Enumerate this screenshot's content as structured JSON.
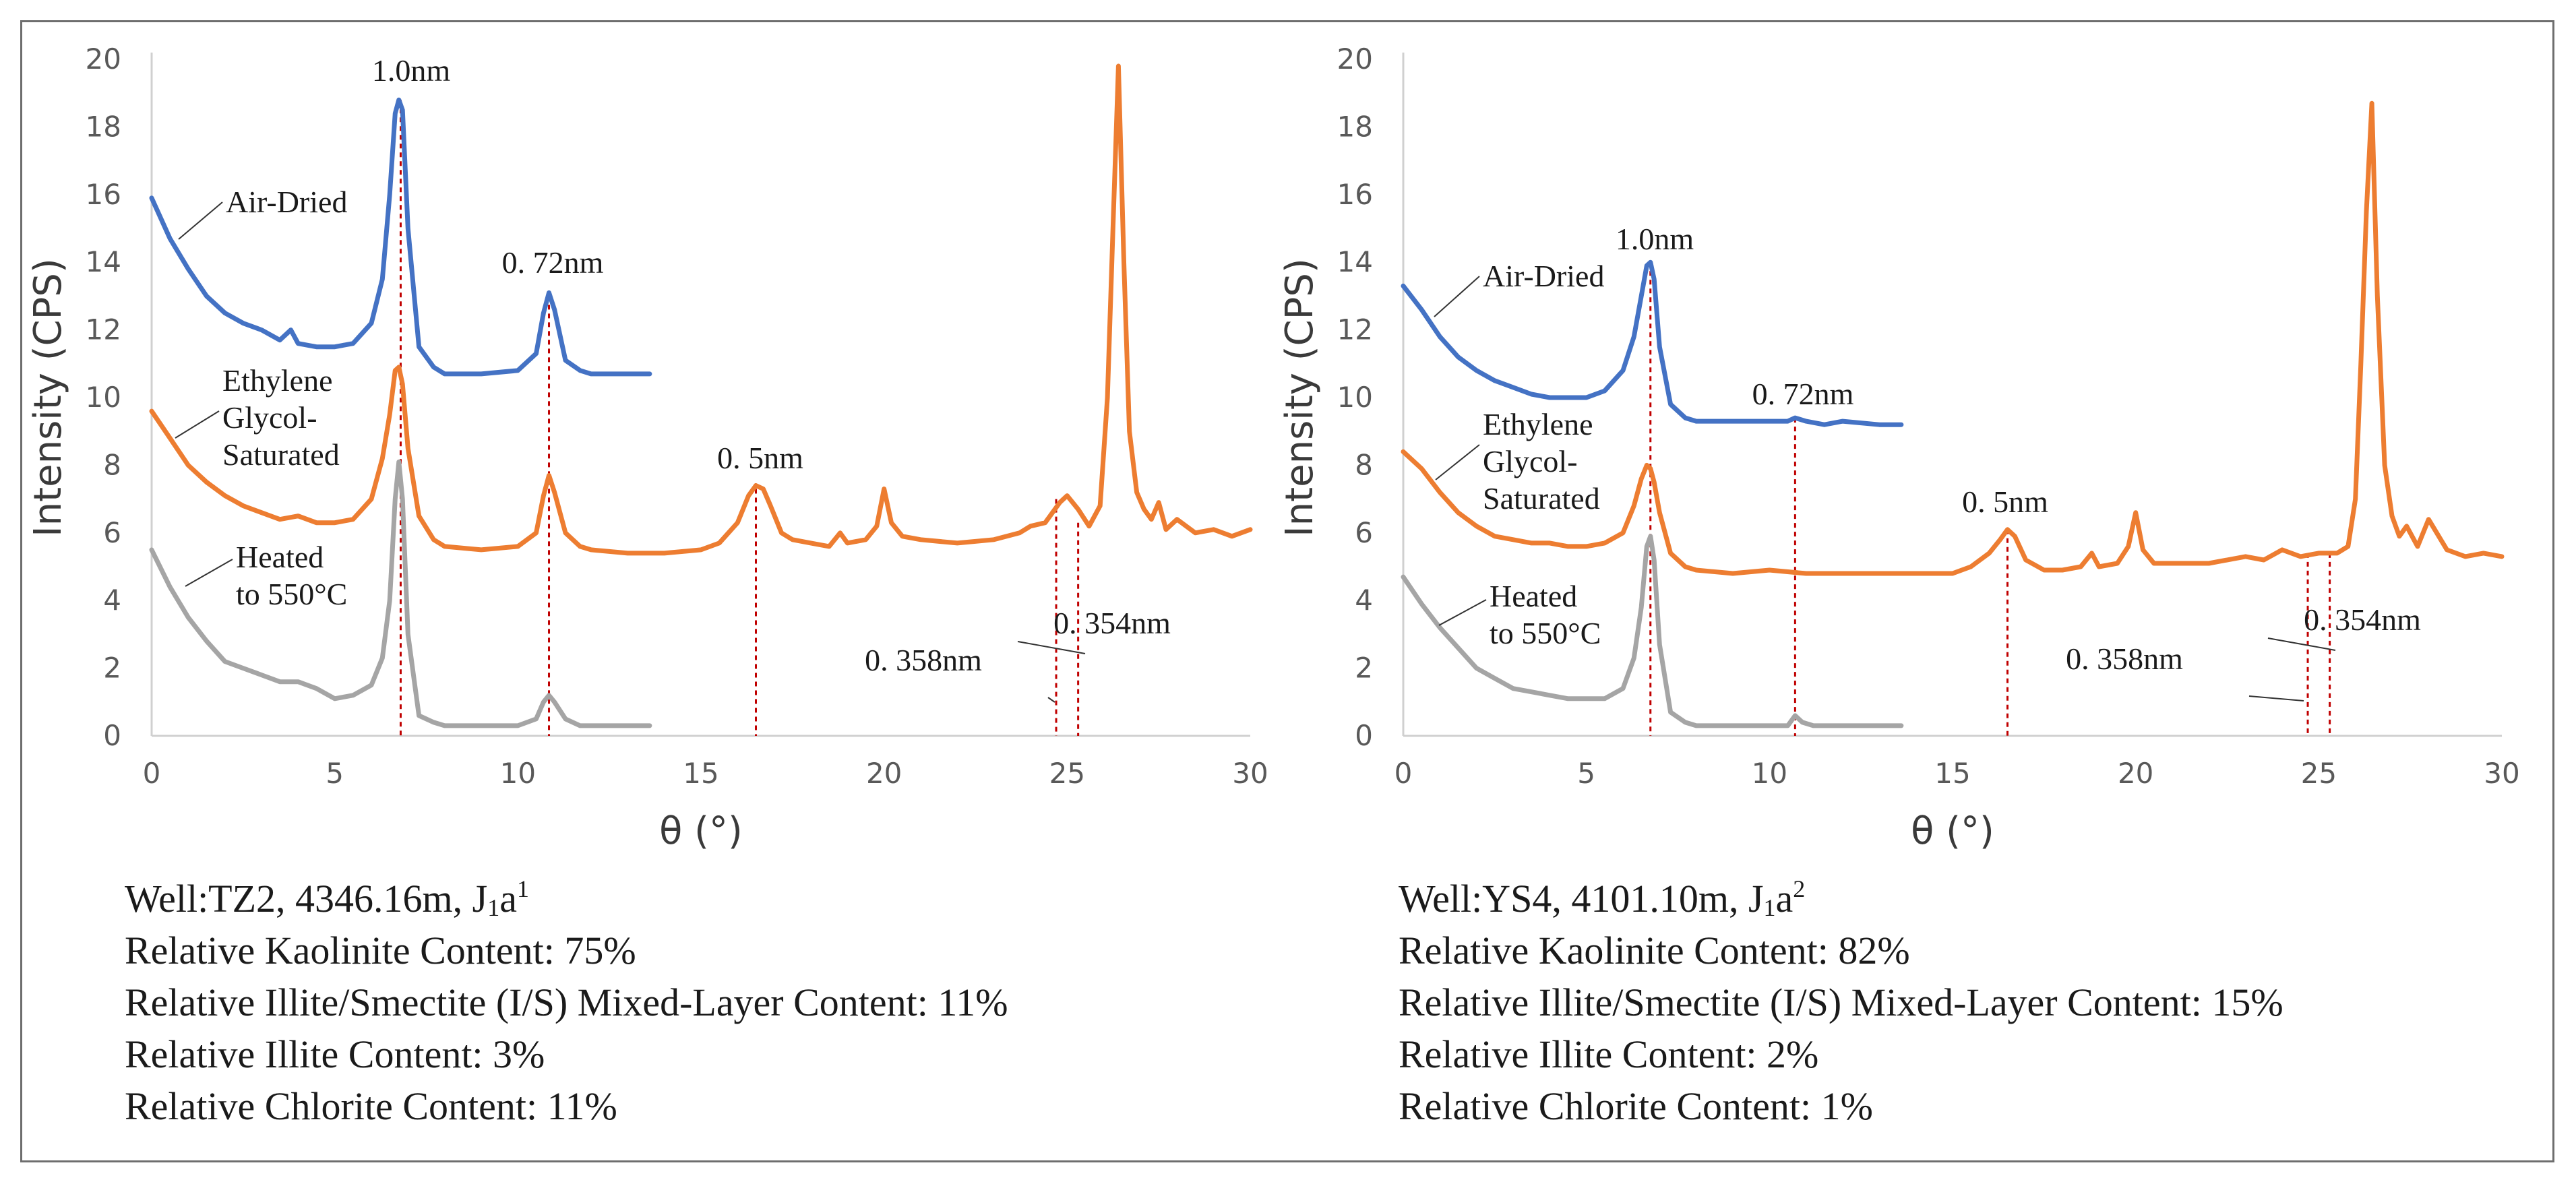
{
  "chart_data": [
    {
      "type": "line",
      "xlabel": "θ (°)",
      "ylabel": "Intensity (CPS)",
      "xlim": [
        0,
        30
      ],
      "ylim": [
        0,
        20
      ],
      "xticks": [
        "0",
        "5",
        "10",
        "15",
        "20",
        "25",
        "30"
      ],
      "yticks": [
        "0",
        "2",
        "4",
        "6",
        "8",
        "10",
        "12",
        "14",
        "16",
        "18",
        "20"
      ],
      "grid": false,
      "colors": {
        "air_dried": "#4472c4",
        "glycol": "#ed7d31",
        "heated": "#a5a5a5",
        "marker": "#c00000"
      },
      "series": [
        {
          "key": "air_dried",
          "label": "Air-Dried",
          "x": [
            0,
            0.5,
            1,
            1.5,
            2,
            2.5,
            3,
            3.5,
            3.8,
            4,
            4.5,
            5,
            5.5,
            6,
            6.3,
            6.5,
            6.65,
            6.75,
            6.85,
            7.0,
            7.3,
            7.7,
            8,
            9,
            10,
            10.5,
            10.7,
            10.85,
            11,
            11.3,
            11.7,
            12,
            13,
            13.6
          ],
          "y": [
            15.9,
            14.7,
            13.8,
            13.0,
            12.5,
            12.2,
            12.0,
            11.7,
            12.0,
            11.6,
            11.5,
            11.5,
            11.6,
            12.2,
            13.5,
            16.0,
            18.4,
            18.8,
            18.5,
            15.0,
            11.5,
            10.9,
            10.7,
            10.7,
            10.8,
            11.3,
            12.5,
            13.1,
            12.6,
            11.1,
            10.8,
            10.7,
            10.7,
            10.7
          ]
        },
        {
          "key": "glycol",
          "label": "Ethylene Glycol-Saturated",
          "x": [
            0,
            0.5,
            1,
            1.5,
            2,
            2.5,
            3,
            3.5,
            4,
            4.5,
            5,
            5.5,
            6,
            6.3,
            6.5,
            6.65,
            6.75,
            6.85,
            7.0,
            7.3,
            7.7,
            8,
            9,
            10,
            10.5,
            10.7,
            10.85,
            11,
            11.3,
            11.7,
            12,
            13,
            14,
            15,
            15.5,
            16,
            16.3,
            16.5,
            16.7,
            16.9,
            17.2,
            17.5,
            18,
            18.5,
            18.8,
            19,
            19.5,
            19.8,
            20.0,
            20.2,
            20.5,
            21,
            22,
            23,
            23.7,
            24,
            24.4,
            24.8,
            25.0,
            25.3,
            25.6,
            25.9,
            26.1,
            26.25,
            26.4,
            26.55,
            26.7,
            26.9,
            27.1,
            27.3,
            27.5,
            27.7,
            28,
            28.5,
            29,
            29.5,
            30
          ],
          "y": [
            9.6,
            8.8,
            8.0,
            7.5,
            7.1,
            6.8,
            6.6,
            6.4,
            6.5,
            6.3,
            6.3,
            6.4,
            7.0,
            8.2,
            9.5,
            10.8,
            10.9,
            10.4,
            8.5,
            6.5,
            5.8,
            5.6,
            5.5,
            5.6,
            6.0,
            7.1,
            7.7,
            7.2,
            6.0,
            5.6,
            5.5,
            5.4,
            5.4,
            5.5,
            5.7,
            6.3,
            7.1,
            7.4,
            7.3,
            6.8,
            6.0,
            5.8,
            5.7,
            5.6,
            6.0,
            5.7,
            5.8,
            6.2,
            7.3,
            6.3,
            5.9,
            5.8,
            5.7,
            5.8,
            6.0,
            6.2,
            6.3,
            6.9,
            7.1,
            6.7,
            6.2,
            6.8,
            10.0,
            15.0,
            19.8,
            14.0,
            9.0,
            7.2,
            6.7,
            6.4,
            6.9,
            6.1,
            6.4,
            6.0,
            6.1,
            5.9,
            6.1
          ]
        },
        {
          "key": "heated",
          "label": "Heated to 550°C",
          "x": [
            0,
            0.5,
            1,
            1.5,
            2,
            2.5,
            3,
            3.5,
            4,
            4.5,
            5,
            5.5,
            6,
            6.3,
            6.5,
            6.65,
            6.75,
            6.85,
            7.0,
            7.3,
            7.7,
            8,
            9,
            10,
            10.5,
            10.7,
            10.85,
            11,
            11.3,
            11.7,
            12,
            13,
            13.6
          ],
          "y": [
            5.5,
            4.4,
            3.5,
            2.8,
            2.2,
            2.0,
            1.8,
            1.6,
            1.6,
            1.4,
            1.1,
            1.2,
            1.5,
            2.3,
            4.0,
            7.0,
            8.1,
            7.0,
            3.0,
            0.6,
            0.4,
            0.3,
            0.3,
            0.3,
            0.5,
            1.0,
            1.2,
            1.0,
            0.5,
            0.3,
            0.3,
            0.3,
            0.3
          ]
        }
      ],
      "markers": [
        {
          "x": 6.8,
          "y": 18.8
        },
        {
          "x": 10.85,
          "y": 13.0
        },
        {
          "x": 16.5,
          "y": 7.3
        },
        {
          "x": 24.7,
          "y": 7.0
        },
        {
          "x": 25.3,
          "y": 6.3
        }
      ],
      "annotations": [
        "1.0nm",
        "0. 72nm",
        "0. 5nm",
        "0. 358nm",
        "0. 354nm"
      ],
      "info": {
        "well": "Well:TZ2, 4346.16m, J",
        "sub": "1",
        "mid": "a",
        "sup": "1",
        "kaolinite": "Relative Kaolinite Content: 75%",
        "is_mixed": "Relative Illite/Smectite (I/S) Mixed-Layer Content: 11%",
        "illite": "Relative Illite Content: 3%",
        "chlorite": "Relative Chlorite Content: 11%"
      }
    },
    {
      "type": "line",
      "xlabel": "θ (°)",
      "ylabel": "Intensity (CPS)",
      "xlim": [
        0,
        30
      ],
      "ylim": [
        0,
        20
      ],
      "xticks": [
        "0",
        "5",
        "10",
        "15",
        "20",
        "25",
        "30"
      ],
      "yticks": [
        "0",
        "2",
        "4",
        "6",
        "8",
        "10",
        "12",
        "14",
        "16",
        "18",
        "20"
      ],
      "grid": false,
      "colors": {
        "air_dried": "#4472c4",
        "glycol": "#ed7d31",
        "heated": "#a5a5a5",
        "marker": "#c00000"
      },
      "series": [
        {
          "key": "air_dried",
          "label": "Air-Dried",
          "x": [
            0,
            0.5,
            1,
            1.5,
            2,
            2.5,
            3,
            3.5,
            4,
            4.5,
            5,
            5.5,
            6,
            6.3,
            6.5,
            6.65,
            6.75,
            6.85,
            7.0,
            7.3,
            7.7,
            8,
            9,
            10,
            10.5,
            10.7,
            11,
            11.5,
            12,
            13,
            13.6
          ],
          "y": [
            13.3,
            12.6,
            11.8,
            11.2,
            10.8,
            10.5,
            10.3,
            10.1,
            10.0,
            10.0,
            10.0,
            10.2,
            10.8,
            11.8,
            13.0,
            13.9,
            14.0,
            13.5,
            11.5,
            9.8,
            9.4,
            9.3,
            9.3,
            9.3,
            9.3,
            9.4,
            9.3,
            9.2,
            9.3,
            9.2,
            9.2
          ]
        },
        {
          "key": "glycol",
          "label": "Ethylene Glycol-Saturated",
          "x": [
            0,
            0.5,
            1,
            1.5,
            2,
            2.5,
            3,
            3.5,
            4,
            4.5,
            5,
            5.5,
            6,
            6.3,
            6.5,
            6.65,
            6.75,
            6.85,
            7.0,
            7.3,
            7.7,
            8,
            9,
            10,
            11,
            12,
            13,
            14,
            15,
            15.5,
            16,
            16.3,
            16.5,
            16.7,
            17,
            17.5,
            18,
            18.5,
            18.8,
            19,
            19.5,
            19.8,
            20.0,
            20.2,
            20.5,
            21,
            22,
            23,
            23.5,
            24,
            24.5,
            25,
            25.5,
            25.8,
            26.0,
            26.15,
            26.3,
            26.45,
            26.6,
            26.8,
            27.0,
            27.2,
            27.4,
            27.7,
            28,
            28.5,
            29,
            29.5,
            30
          ],
          "y": [
            8.4,
            7.9,
            7.2,
            6.6,
            6.2,
            5.9,
            5.8,
            5.7,
            5.7,
            5.6,
            5.6,
            5.7,
            6.0,
            6.8,
            7.6,
            8.0,
            7.9,
            7.5,
            6.6,
            5.4,
            5.0,
            4.9,
            4.8,
            4.9,
            4.8,
            4.8,
            4.8,
            4.8,
            4.8,
            5.0,
            5.4,
            5.8,
            6.1,
            5.9,
            5.2,
            4.9,
            4.9,
            5.0,
            5.4,
            5.0,
            5.1,
            5.6,
            6.6,
            5.5,
            5.1,
            5.1,
            5.1,
            5.3,
            5.2,
            5.5,
            5.3,
            5.4,
            5.4,
            5.6,
            7.0,
            11.0,
            15.5,
            18.7,
            13.0,
            8.0,
            6.5,
            5.9,
            6.2,
            5.6,
            6.4,
            5.5,
            5.3,
            5.4,
            5.3
          ]
        },
        {
          "key": "heated",
          "label": "Heated to 550°C",
          "x": [
            0,
            0.5,
            1,
            1.5,
            2,
            2.5,
            3,
            3.5,
            4,
            4.5,
            5,
            5.5,
            6,
            6.3,
            6.5,
            6.65,
            6.75,
            6.85,
            7.0,
            7.3,
            7.7,
            8,
            9,
            10,
            10.5,
            10.7,
            10.9,
            11.2,
            12,
            13,
            13.6
          ],
          "y": [
            4.7,
            3.9,
            3.2,
            2.6,
            2.0,
            1.7,
            1.4,
            1.3,
            1.2,
            1.1,
            1.1,
            1.1,
            1.4,
            2.3,
            3.8,
            5.6,
            5.9,
            5.2,
            2.7,
            0.7,
            0.4,
            0.3,
            0.3,
            0.3,
            0.3,
            0.6,
            0.4,
            0.3,
            0.3,
            0.3,
            0.3
          ]
        }
      ],
      "markers": [
        {
          "x": 6.75,
          "y": 14.0
        },
        {
          "x": 10.7,
          "y": 9.4
        },
        {
          "x": 16.5,
          "y": 6.1
        },
        {
          "x": 24.7,
          "y": 5.4
        },
        {
          "x": 25.3,
          "y": 5.4
        }
      ],
      "annotations": [
        "1.0nm",
        "0. 72nm",
        "0. 5nm",
        "0. 358nm",
        "0. 354nm"
      ],
      "info": {
        "well": "Well:YS4, 4101.10m, J",
        "sub": "1",
        "mid": "a",
        "sup": "2",
        "kaolinite": "Relative Kaolinite Content: 82%",
        "is_mixed": "Relative Illite/Smectite (I/S) Mixed-Layer Content: 15%",
        "illite": "Relative Illite Content: 2%",
        "chlorite": "Relative Chlorite Content: 1%"
      }
    }
  ],
  "labels": {
    "air_dried": "Air-Dried",
    "ethylene": "Ethylene",
    "glycol": "Glycol-",
    "saturated": "Saturated",
    "heated": "Heated",
    "to550": "to 550°C"
  }
}
